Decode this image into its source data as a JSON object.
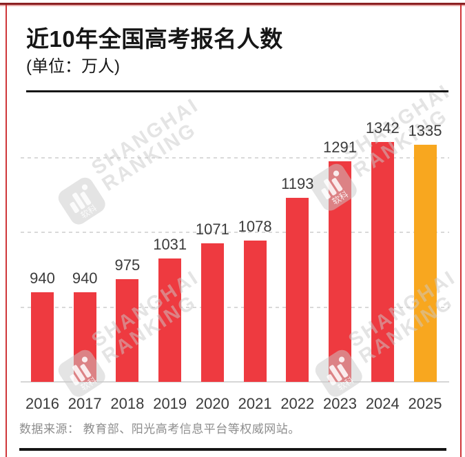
{
  "header": {
    "title": "近10年全国高考报名人数",
    "subtitle": "(单位：万人)"
  },
  "chart_data": {
    "type": "bar",
    "title": "近10年全国高考报名人数",
    "unit_label": "万人",
    "categories": [
      "2016",
      "2017",
      "2018",
      "2019",
      "2020",
      "2021",
      "2022",
      "2023",
      "2024",
      "2025"
    ],
    "values": [
      940,
      940,
      975,
      1031,
      1071,
      1078,
      1193,
      1291,
      1342,
      1335
    ],
    "highlight_index": 9,
    "ylim": [
      700,
      1420
    ],
    "gridline_values": [
      900,
      1100,
      1300
    ],
    "grid_style": "dotted-horizontal",
    "legend": "none",
    "bar_color": "#ee3a40",
    "highlight_color": "#f8a71f"
  },
  "footer": {
    "source": "数据来源： 教育部、阳光高考信息平台等权威网站。"
  },
  "watermark": {
    "line1": "SHANGHAI",
    "line2": "RANKING",
    "logo_text": "软科"
  },
  "colors": {
    "bar_red": "#ee3a40",
    "bar_orange": "#f8a71f",
    "frame_border": "#cf3538",
    "frame_top_dark": "#8b2022",
    "frame_top_pink": "#e9aba9",
    "grid_line": "#d9d9d9",
    "axis_baseline": "#d6d6d6",
    "text_dark": "#161616",
    "label_gray": "#3b3b3b",
    "source_gray": "#8d8d8d",
    "rule_black": "#151515",
    "watermark": "rgba(201,201,201,0.5)"
  }
}
